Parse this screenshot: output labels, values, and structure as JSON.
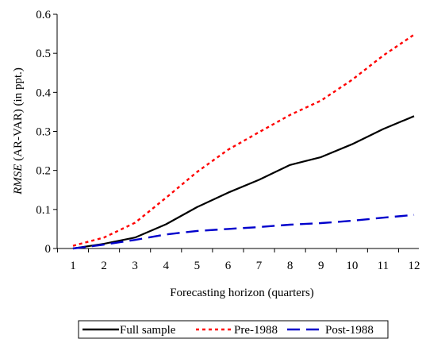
{
  "chart_data": {
    "type": "line",
    "x": [
      1,
      2,
      3,
      4,
      5,
      6,
      7,
      8,
      9,
      10,
      11,
      12
    ],
    "series": [
      {
        "name": "Full sample",
        "color": "#000000",
        "dash": "solid",
        "values": [
          0.0,
          0.012,
          0.028,
          0.062,
          0.106,
          0.143,
          0.176,
          0.214,
          0.234,
          0.267,
          0.306,
          0.339
        ]
      },
      {
        "name": "Pre-1988",
        "color": "#ff0000",
        "dash": "dotted",
        "values": [
          0.007,
          0.028,
          0.066,
          0.13,
          0.196,
          0.253,
          0.298,
          0.342,
          0.379,
          0.432,
          0.494,
          0.548
        ]
      },
      {
        "name": "Post-1988",
        "color": "#0000cc",
        "dash": "dashed",
        "values": [
          0.0,
          0.01,
          0.022,
          0.036,
          0.045,
          0.05,
          0.055,
          0.061,
          0.065,
          0.071,
          0.079,
          0.086
        ]
      }
    ],
    "xticks": [
      "1",
      "2",
      "3",
      "4",
      "5",
      "6",
      "7",
      "8",
      "9",
      "10",
      "11",
      "12"
    ],
    "yticks": [
      "0",
      "0.1",
      "0.2",
      "0.3",
      "0.4",
      "0.5",
      "0.6"
    ],
    "ytick_values": [
      0,
      0.1,
      0.2,
      0.3,
      0.4,
      0.5,
      0.6
    ],
    "ylim": [
      0,
      0.6
    ],
    "xlabel": "Forecasting horizon (quarters)",
    "ylabel_italic": "RMSE",
    "ylabel_rest": " (AR-VAR) (in ppt.)",
    "grid": false,
    "legend_position": "bottom"
  }
}
